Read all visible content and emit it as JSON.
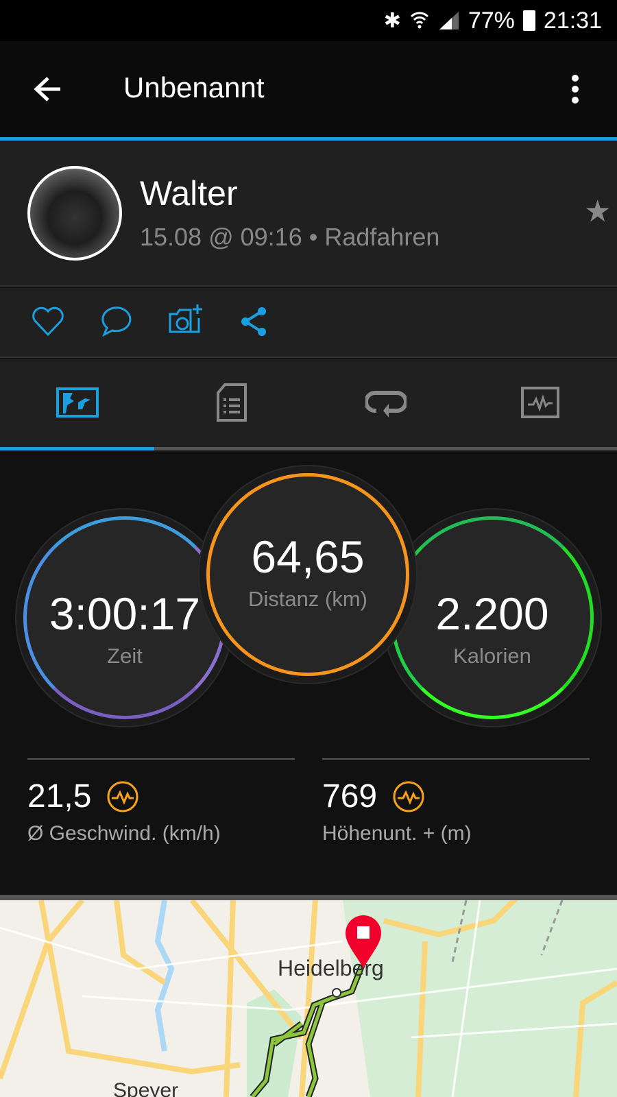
{
  "status_bar": {
    "battery": "77%",
    "time": "21:31",
    "icons": [
      "bluetooth-icon",
      "wifi-icon",
      "signal-icon",
      "battery-icon"
    ]
  },
  "app_bar": {
    "title": "Unbenannt",
    "back_icon": "arrow-left-icon",
    "menu_icon": "more-vert-icon"
  },
  "activity": {
    "user": "Walter",
    "meta": "15.08 @ 09:16 • Radfahren",
    "favorite_icon": "star-icon"
  },
  "actions": [
    "heart-icon",
    "comment-icon",
    "add-photo-icon",
    "share-icon"
  ],
  "tabs": [
    {
      "icon": "overview-map-icon",
      "active": true
    },
    {
      "icon": "details-icon",
      "active": false
    },
    {
      "icon": "laps-icon",
      "active": false
    },
    {
      "icon": "chart-icon",
      "active": false
    }
  ],
  "stats": {
    "time": {
      "value": "3:00:17",
      "label": "Zeit"
    },
    "distance": {
      "value": "64,65",
      "label": "Distanz (km)"
    },
    "calories": {
      "value": "2.200",
      "label": "Kalorien"
    },
    "avg_speed": {
      "value": "21,5",
      "label": "Ø Geschwind. (km/h)"
    },
    "elevation": {
      "value": "769",
      "label": "Höhenunt. + (m)"
    }
  },
  "colors": {
    "accent": "#1a9fe0",
    "distance": "#f7941d",
    "calories": "#22dd22",
    "badge": "#f7a21b"
  },
  "map": {
    "labels": [
      "Heidelberg",
      "Speyer"
    ]
  }
}
